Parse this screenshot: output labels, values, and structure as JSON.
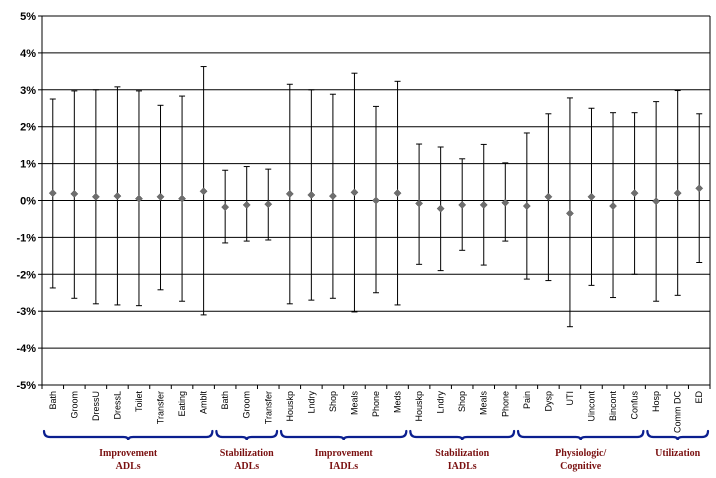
{
  "chart_data": {
    "type": "scatter",
    "subtype": "point-with-error-bars",
    "ylim": [
      -5,
      5
    ],
    "y_ticks": [
      "5%",
      "4%",
      "3%",
      "2%",
      "1%",
      "0%",
      "-1%",
      "-2%",
      "-3%",
      "-4%",
      "-5%"
    ],
    "grid": "horizontal",
    "colors": {
      "marker": "#6e6e6e",
      "errorbar": "#000000",
      "group_label": "#7a1010",
      "brace": "#0b1f8f"
    },
    "categories": [
      "Bath",
      "Groom",
      "DressU",
      "DressL",
      "Toilet",
      "Transfer",
      "Eating",
      "Amblt",
      "Bath",
      "Groom",
      "Transfer",
      "Houskp",
      "Lndry",
      "Shop",
      "Meals",
      "Phone",
      "Meds",
      "Houskp",
      "Lndry",
      "Shop",
      "Meals",
      "Phone",
      "Pain",
      "Dysp",
      "UTI",
      "Uincont",
      "Bincont",
      "Confus",
      "Hosp",
      "Comm DC",
      "ED"
    ],
    "values": [
      0.2,
      0.18,
      0.1,
      0.12,
      0.05,
      0.1,
      0.05,
      0.25,
      -0.18,
      -0.12,
      -0.1,
      0.18,
      0.15,
      0.12,
      0.22,
      0.0,
      0.2,
      -0.08,
      -0.22,
      -0.12,
      -0.12,
      -0.06,
      -0.15,
      0.1,
      -0.35,
      0.1,
      -0.15,
      0.2,
      -0.02,
      0.2,
      0.33
    ],
    "upper": [
      2.75,
      2.97,
      3.0,
      3.08,
      2.97,
      2.58,
      2.83,
      3.63,
      0.82,
      0.92,
      0.85,
      3.15,
      3.0,
      2.88,
      3.45,
      2.55,
      3.23,
      1.53,
      1.45,
      1.13,
      1.52,
      1.02,
      1.83,
      2.35,
      2.78,
      2.5,
      2.38,
      2.38,
      2.68,
      2.98,
      2.35
    ],
    "lower": [
      -2.37,
      -2.65,
      -2.8,
      -2.83,
      -2.85,
      -2.42,
      -2.73,
      -3.1,
      -1.15,
      -1.1,
      -1.07,
      -2.8,
      -2.7,
      -2.65,
      -3.02,
      -2.5,
      -2.83,
      -1.73,
      -1.9,
      -1.35,
      -1.75,
      -1.1,
      -2.13,
      -2.17,
      -3.42,
      -2.3,
      -2.63,
      -2.0,
      -2.73,
      -2.57,
      -1.68
    ],
    "groups": [
      {
        "label_lines": [
          "Improvement",
          "ADLs"
        ],
        "start": 0,
        "end": 7
      },
      {
        "label_lines": [
          "Stabilization",
          "ADLs"
        ],
        "start": 8,
        "end": 10
      },
      {
        "label_lines": [
          "Improvement",
          "IADLs"
        ],
        "start": 11,
        "end": 16
      },
      {
        "label_lines": [
          "Stabilization",
          "IADLs"
        ],
        "start": 17,
        "end": 21
      },
      {
        "label_lines": [
          "Physiologic/",
          "Cognitive"
        ],
        "start": 22,
        "end": 27
      },
      {
        "label_lines": [
          "Utilization"
        ],
        "start": 28,
        "end": 30
      }
    ]
  }
}
